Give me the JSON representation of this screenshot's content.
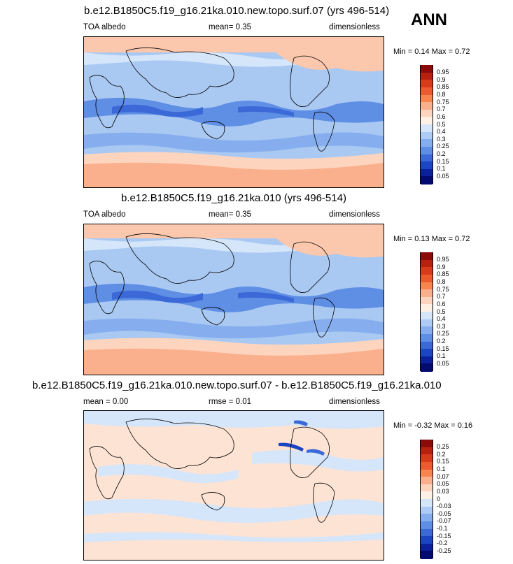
{
  "season": "ANN",
  "panels": [
    {
      "title": "b.e12.B1850C5.f19_g16.21ka.010.new.topo.surf.07 (yrs 496-514)",
      "left": "TOA albedo",
      "center": "mean=   0.35",
      "right": "dimensionless",
      "minmax": "Min =   0.14 Max =   0.72",
      "levels": [
        "0.95",
        "0.9",
        "0.85",
        "0.8",
        "0.75",
        "0.7",
        "0.6",
        "0.5",
        "0.4",
        "0.3",
        "0.25",
        "0.2",
        "0.15",
        "0.1",
        "0.05"
      ],
      "colors": [
        "#8b0a0a",
        "#b8200f",
        "#d83a1c",
        "#ee5a30",
        "#f88550",
        "#fbb08d",
        "#fdd5bf",
        "#fff1e6",
        "#d5e6fb",
        "#adcbf5",
        "#86aeee",
        "#5f8ee5",
        "#3b6ad8",
        "#1c45c4",
        "#0b209c",
        "#040b70"
      ]
    },
    {
      "title": "b.e12.B1850C5.f19_g16.21ka.010 (yrs 496-514)",
      "left": "TOA albedo",
      "center": "mean=   0.35",
      "right": "dimensionless",
      "minmax": "Min =   0.13 Max =   0.72",
      "levels": [
        "0.95",
        "0.9",
        "0.85",
        "0.8",
        "0.75",
        "0.7",
        "0.6",
        "0.5",
        "0.4",
        "0.3",
        "0.25",
        "0.2",
        "0.15",
        "0.1",
        "0.05"
      ],
      "colors": [
        "#8b0a0a",
        "#b8200f",
        "#d83a1c",
        "#ee5a30",
        "#f88550",
        "#fbb08d",
        "#fdd5bf",
        "#fff1e6",
        "#d5e6fb",
        "#adcbf5",
        "#86aeee",
        "#5f8ee5",
        "#3b6ad8",
        "#1c45c4",
        "#0b209c",
        "#040b70"
      ]
    },
    {
      "title": "b.e12.B1850C5.f19_g16.21ka.010.new.topo.surf.07 - b.e12.B1850C5.f19_g16.21ka.010",
      "left": "mean =   0.00",
      "center": "rmse =   0.01",
      "right": "dimensionless",
      "minmax": "Min =  -0.32 Max =   0.16",
      "levels": [
        "0.25",
        "0.2",
        "0.15",
        "0.1",
        "0.07",
        "0.05",
        "0.03",
        "0",
        "-0.03",
        "-0.05",
        "-0.07",
        "-0.1",
        "-0.15",
        "-0.2",
        "-0.25"
      ],
      "colors": [
        "#8b0a0a",
        "#b8200f",
        "#d83a1c",
        "#ee5a30",
        "#f88550",
        "#fbb08d",
        "#fdd5bf",
        "#fff1e6",
        "#d5e6fb",
        "#adcbf5",
        "#86aeee",
        "#5f8ee5",
        "#3b6ad8",
        "#1c45c4",
        "#0b209c",
        "#040b70"
      ]
    }
  ]
}
